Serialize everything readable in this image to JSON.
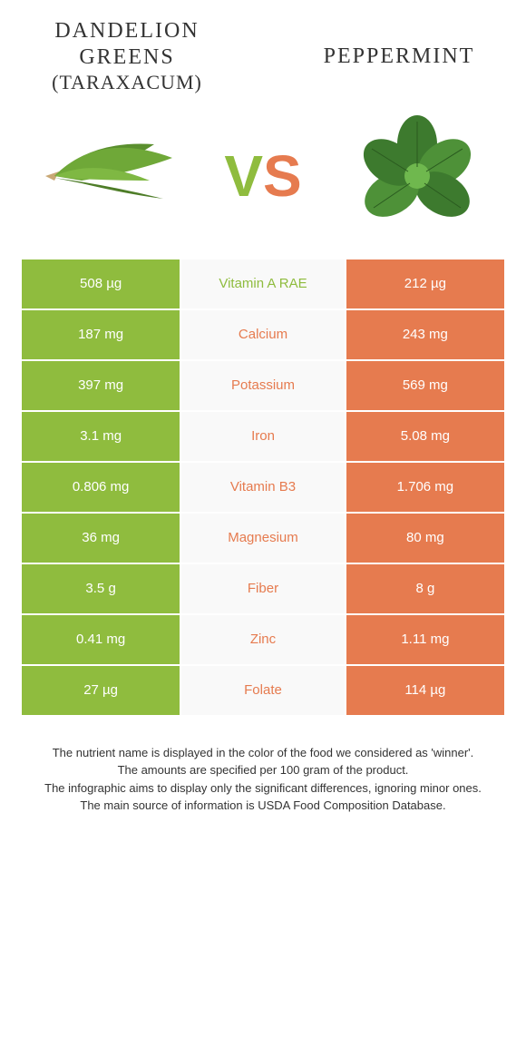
{
  "colors": {
    "green": "#8fbc3e",
    "orange": "#e67b4f",
    "mid_bg": "#f9f9f9",
    "text": "#333333",
    "white": "#ffffff"
  },
  "left_food": {
    "name": "DANDELION GREENS",
    "subname": "(TARAXACUM)"
  },
  "right_food": {
    "name": "PEPPERMINT"
  },
  "vs": {
    "v": "V",
    "s": "S"
  },
  "rows": [
    {
      "nutrient": "Vitamin A RAE",
      "left": "508 µg",
      "right": "212 µg",
      "winner": "left"
    },
    {
      "nutrient": "Calcium",
      "left": "187 mg",
      "right": "243 mg",
      "winner": "right"
    },
    {
      "nutrient": "Potassium",
      "left": "397 mg",
      "right": "569 mg",
      "winner": "right"
    },
    {
      "nutrient": "Iron",
      "left": "3.1 mg",
      "right": "5.08 mg",
      "winner": "right"
    },
    {
      "nutrient": "Vitamin B3",
      "left": "0.806 mg",
      "right": "1.706 mg",
      "winner": "right"
    },
    {
      "nutrient": "Magnesium",
      "left": "36 mg",
      "right": "80 mg",
      "winner": "right"
    },
    {
      "nutrient": "Fiber",
      "left": "3.5 g",
      "right": "8 g",
      "winner": "right"
    },
    {
      "nutrient": "Zinc",
      "left": "0.41 mg",
      "right": "1.11 mg",
      "winner": "right"
    },
    {
      "nutrient": "Folate",
      "left": "27 µg",
      "right": "114 µg",
      "winner": "right"
    }
  ],
  "footer": {
    "line1": "The nutrient name is displayed in the color of the food we considered as 'winner'.",
    "line2": "The amounts are specified per 100 gram of the product.",
    "line3": "The infographic aims to display only the significant differences, ignoring minor ones.",
    "line4": "The main source of information is USDA Food Composition Database."
  }
}
